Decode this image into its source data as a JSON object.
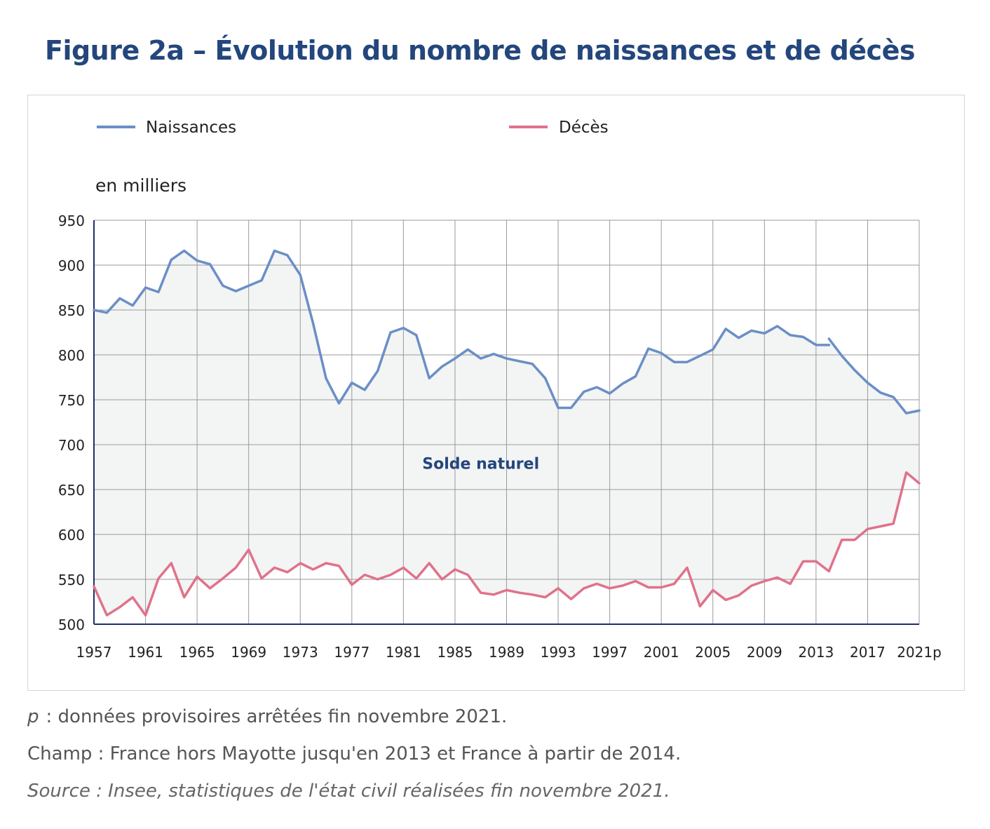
{
  "title": "Figure 2a – Évolution du nombre de naissances et de décès",
  "colors": {
    "title": "#23467c",
    "naissances": "#6a8fc6",
    "deces": "#e0728a",
    "fill": "#f3f4f4",
    "grid": "#9a9a9a",
    "axis": "#1e2e6e",
    "area_label": "#23467c"
  },
  "chart_data": {
    "type": "line",
    "unit_label": "en milliers",
    "area_label": "Solde naturel",
    "ylim": [
      500,
      950
    ],
    "yticks": [
      "500",
      "550",
      "600",
      "650",
      "700",
      "750",
      "800",
      "850",
      "900",
      "950"
    ],
    "xticks": [
      "1957",
      "1961",
      "1965",
      "1969",
      "1973",
      "1977",
      "1981",
      "1985",
      "1989",
      "1993",
      "1997",
      "2001",
      "2005",
      "2009",
      "2013",
      "2017",
      "2021p"
    ],
    "x": [
      1957,
      1958,
      1959,
      1960,
      1961,
      1962,
      1963,
      1964,
      1965,
      1966,
      1967,
      1968,
      1969,
      1970,
      1971,
      1972,
      1973,
      1974,
      1975,
      1976,
      1977,
      1978,
      1979,
      1980,
      1981,
      1982,
      1983,
      1984,
      1985,
      1986,
      1987,
      1988,
      1989,
      1990,
      1991,
      1992,
      1993,
      1994,
      1995,
      1996,
      1997,
      1998,
      1999,
      2000,
      2001,
      2002,
      2003,
      2004,
      2005,
      2006,
      2007,
      2008,
      2009,
      2010,
      2011,
      2012,
      2013,
      2014,
      2015,
      2016,
      2017,
      2018,
      2019,
      2020,
      2021
    ],
    "grid": true,
    "legend_position": "top",
    "series": [
      {
        "name": "Naissances",
        "segments": [
          {
            "from": 1957,
            "values": [
              850,
              847,
              863,
              855,
              875,
              870,
              906,
              916,
              905,
              901,
              877,
              871,
              877,
              883,
              916,
              911,
              889,
              835,
              774,
              746,
              769,
              761,
              782,
              825,
              830,
              822,
              774,
              787,
              796,
              806,
              796,
              801,
              796,
              793,
              790,
              774,
              741,
              741,
              759,
              764,
              757,
              768,
              776,
              807,
              802,
              792,
              792,
              799,
              806,
              829,
              819,
              827,
              824,
              832,
              822,
              820,
              811,
              811
            ]
          },
          {
            "from": 2014,
            "values": [
              818,
              799,
              783,
              769,
              758,
              753,
              735,
              738
            ]
          }
        ]
      },
      {
        "name": "Décès",
        "segments": [
          {
            "from": 1957,
            "values": [
              542,
              510,
              519,
              530,
              510,
              551,
              568,
              530,
              553,
              540,
              551,
              563,
              583,
              551,
              563,
              558,
              568,
              561,
              568,
              565,
              544,
              555,
              550,
              555,
              563,
              551,
              568,
              550,
              561,
              555,
              535,
              533,
              538,
              535,
              533,
              530,
              540,
              528,
              540,
              545,
              540,
              543,
              548,
              541,
              541,
              545,
              563,
              520,
              538,
              527,
              532,
              543,
              548,
              552,
              545,
              570,
              570,
              559,
              594,
              594,
              606,
              609,
              612,
              669,
              657
            ]
          }
        ]
      }
    ]
  },
  "notes": {
    "provisional_mark": "p",
    "provisional_text": ": données provisoires arrêtées fin novembre 2021.",
    "scope": "Champ : France hors Mayotte jusqu'en 2013 et France à partir de 2014.",
    "source": "Source : Insee, statistiques de l'état civil réalisées fin novembre 2021."
  }
}
